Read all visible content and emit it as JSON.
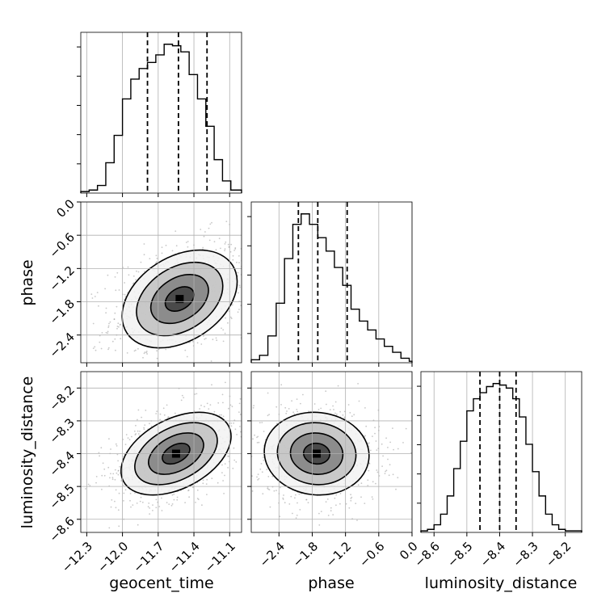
{
  "chart_data": {
    "type": "corner",
    "parameters": [
      "geocent_time",
      "phase",
      "luminosity_distance"
    ],
    "axes": {
      "geocent_time": {
        "range": [
          -12.35,
          -11.0
        ],
        "ticks": [
          -12.3,
          -12.0,
          -11.7,
          -11.4,
          -11.1
        ],
        "tick_labels": [
          "−12.3",
          "−12.0",
          "−11.7",
          "−11.4",
          "−11.1"
        ]
      },
      "phase": {
        "range": [
          -2.9,
          0.0
        ],
        "ticks": [
          -2.4,
          -1.8,
          -1.2,
          -0.6,
          0.0
        ],
        "tick_labels": [
          "−2.4",
          "−1.8",
          "−1.2",
          "−0.6",
          "0.0"
        ]
      },
      "luminosity_distance": {
        "range": [
          -8.64,
          -8.15
        ],
        "ticks": [
          -8.6,
          -8.5,
          -8.4,
          -8.3,
          -8.2
        ],
        "tick_labels": [
          "−8.6",
          "−8.5",
          "−8.4",
          "−8.3",
          "−8.2"
        ]
      }
    },
    "histograms": [
      {
        "parameter": "geocent_time",
        "quantiles": [
          -11.79,
          -11.53,
          -11.29
        ],
        "bin_edges": [
          -12.35,
          -12.28,
          -12.21,
          -12.14,
          -12.07,
          -12.0,
          -11.93,
          -11.86,
          -11.79,
          -11.72,
          -11.65,
          -11.58,
          -11.51,
          -11.44,
          -11.37,
          -11.3,
          -11.23,
          -11.16,
          -11.09,
          -11.0
        ],
        "counts": [
          1,
          2,
          5,
          20,
          38,
          62,
          75,
          82,
          86,
          91,
          98,
          97,
          93,
          78,
          62,
          44,
          22,
          8,
          2
        ]
      },
      {
        "parameter": "phase",
        "quantiles": [
          -2.05,
          -1.7,
          -1.17
        ],
        "bin_edges": [
          -2.9,
          -2.75,
          -2.6,
          -2.45,
          -2.3,
          -2.15,
          -2.0,
          -1.85,
          -1.7,
          -1.55,
          -1.4,
          -1.25,
          -1.1,
          -0.95,
          -0.8,
          -0.65,
          -0.5,
          -0.35,
          -0.2,
          -0.05,
          0.0
        ],
        "counts": [
          2,
          5,
          18,
          40,
          70,
          93,
          100,
          93,
          84,
          75,
          64,
          52,
          36,
          28,
          22,
          16,
          11,
          7,
          3,
          1
        ]
      },
      {
        "parameter": "luminosity_distance",
        "quantiles": [
          -8.46,
          -8.4,
          -8.35
        ],
        "bin_edges": [
          -8.64,
          -8.62,
          -8.6,
          -8.58,
          -8.56,
          -8.54,
          -8.52,
          -8.5,
          -8.48,
          -8.46,
          -8.44,
          -8.42,
          -8.4,
          -8.38,
          -8.36,
          -8.34,
          -8.32,
          -8.3,
          -8.28,
          -8.26,
          -8.24,
          -8.22,
          -8.2,
          -8.18,
          -8.15
        ],
        "counts": [
          1,
          2,
          5,
          12,
          24,
          42,
          60,
          80,
          88,
          92,
          96,
          98,
          97,
          95,
          88,
          76,
          58,
          40,
          24,
          12,
          5,
          2,
          1,
          1
        ]
      }
    ],
    "joint_2d": [
      {
        "x": "geocent_time",
        "y": "phase",
        "mean": [
          -11.52,
          -1.75
        ],
        "std": [
          0.23,
          0.42
        ],
        "correlation": 0.35
      },
      {
        "x": "geocent_time",
        "y": "luminosity_distance",
        "mean": [
          -11.55,
          -8.4
        ],
        "std": [
          0.22,
          0.06
        ],
        "correlation": 0.42
      },
      {
        "x": "phase",
        "y": "luminosity_distance",
        "mean": [
          -1.72,
          -8.4
        ],
        "std": [
          0.45,
          0.06
        ],
        "correlation": -0.05
      }
    ],
    "contour_levels_sigma": [
      0.5,
      1.0,
      1.5,
      2.0
    ],
    "grid": true,
    "legend": "none"
  }
}
